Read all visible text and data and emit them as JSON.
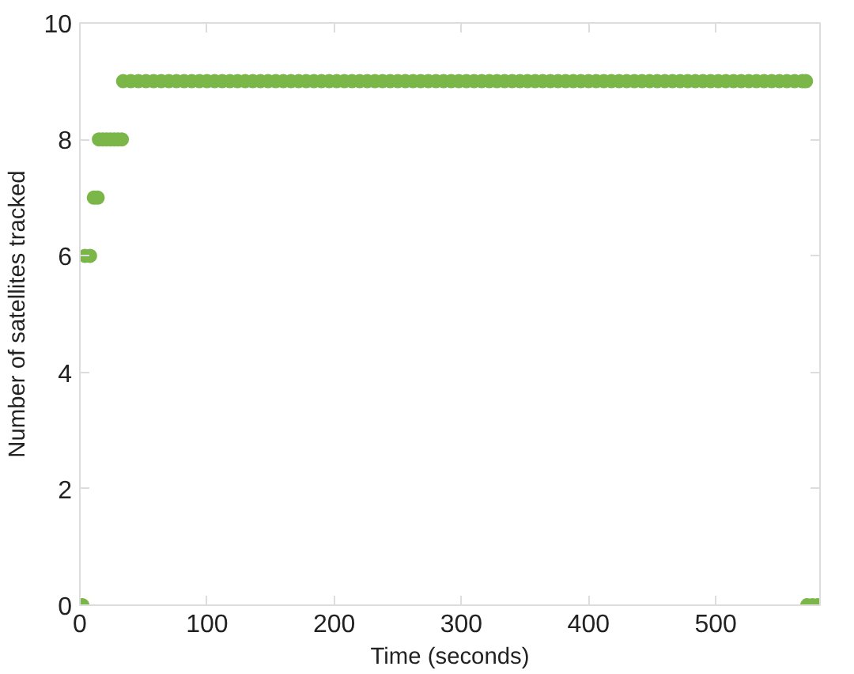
{
  "chart_data": {
    "type": "scatter",
    "xlabel": "Time (seconds)",
    "ylabel": "Number of satellites tracked",
    "x": [
      2,
      4,
      8,
      11,
      14,
      15,
      18,
      21,
      24,
      27,
      30,
      33,
      34,
      40,
      46,
      52,
      58,
      64,
      70,
      76,
      82,
      88,
      94,
      100,
      106,
      112,
      118,
      124,
      130,
      136,
      142,
      148,
      154,
      160,
      166,
      172,
      178,
      184,
      190,
      196,
      202,
      208,
      214,
      220,
      226,
      232,
      238,
      244,
      250,
      256,
      262,
      268,
      274,
      280,
      286,
      292,
      298,
      304,
      310,
      316,
      322,
      328,
      334,
      340,
      346,
      352,
      358,
      364,
      370,
      376,
      382,
      388,
      394,
      400,
      406,
      412,
      418,
      424,
      430,
      436,
      442,
      448,
      454,
      460,
      466,
      472,
      478,
      484,
      490,
      496,
      502,
      508,
      514,
      520,
      526,
      532,
      538,
      544,
      550,
      556,
      562,
      568,
      571,
      572,
      576,
      580
    ],
    "series": [
      {
        "color": "#7ab648",
        "values": [
          0,
          6,
          6,
          7,
          7,
          8,
          8,
          8,
          8,
          8,
          8,
          8,
          9,
          9,
          9,
          9,
          9,
          9,
          9,
          9,
          9,
          9,
          9,
          9,
          9,
          9,
          9,
          9,
          9,
          9,
          9,
          9,
          9,
          9,
          9,
          9,
          9,
          9,
          9,
          9,
          9,
          9,
          9,
          9,
          9,
          9,
          9,
          9,
          9,
          9,
          9,
          9,
          9,
          9,
          9,
          9,
          9,
          9,
          9,
          9,
          9,
          9,
          9,
          9,
          9,
          9,
          9,
          9,
          9,
          9,
          9,
          9,
          9,
          9,
          9,
          9,
          9,
          9,
          9,
          9,
          9,
          9,
          9,
          9,
          9,
          9,
          9,
          9,
          9,
          9,
          9,
          9,
          9,
          9,
          9,
          9,
          9,
          9,
          9,
          9,
          9,
          9,
          9,
          0,
          0,
          0
        ]
      }
    ],
    "xlim": [
      0,
      582
    ],
    "ylim": [
      0,
      10
    ],
    "xticks": [
      0,
      100,
      200,
      300,
      400,
      500
    ],
    "yticks": [
      0,
      2,
      4,
      6,
      8,
      10
    ],
    "marker": "circle",
    "grid": false
  }
}
